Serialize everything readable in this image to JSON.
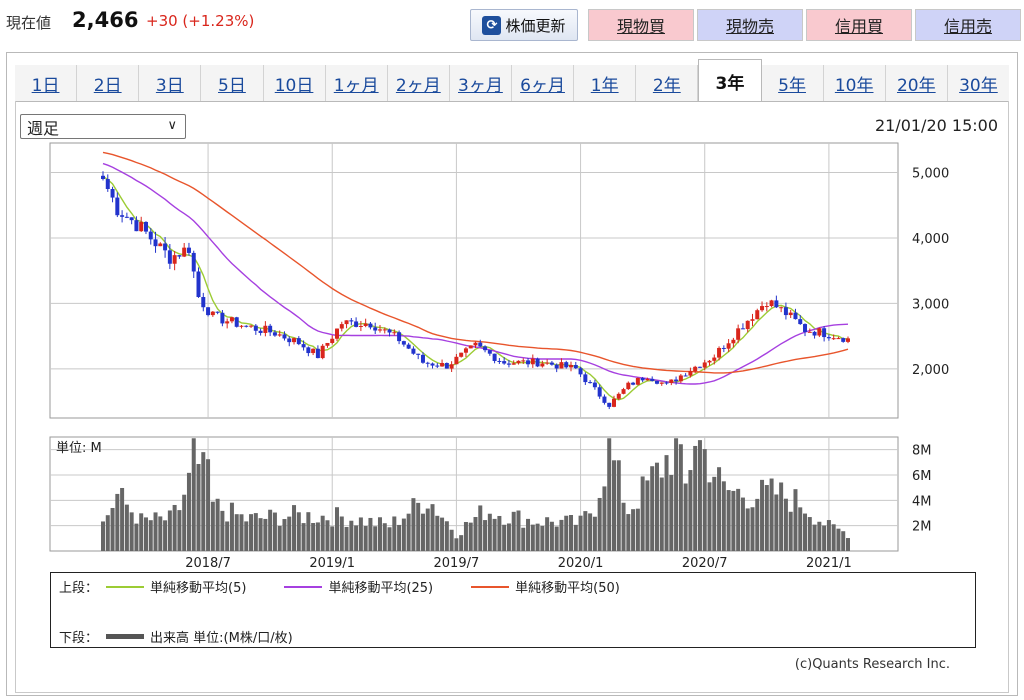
{
  "header": {
    "price_label": "現在値",
    "price_value": "2,466",
    "price_change": "+30 (+1.23%)",
    "refresh_label": "株価更新",
    "buttons": [
      "現物買",
      "現物売",
      "信用買",
      "信用売"
    ],
    "colors": {
      "up": "#d9261c",
      "down": "#2233cc"
    }
  },
  "tabs": [
    "1日",
    "2日",
    "3日",
    "5日",
    "10日",
    "1ヶ月",
    "2ヶ月",
    "3ヶ月",
    "6ヶ月",
    "1年",
    "2年",
    "3年",
    "5年",
    "10年",
    "20年",
    "30年"
  ],
  "active_tab": 11,
  "period_select": "週足",
  "timestamp": "21/01/20 15:00",
  "chart_data": [
    {
      "type": "candlestick",
      "y_ticks": [
        "5,000",
        "4,000",
        "3,000",
        "2,000"
      ],
      "y_tick_values": [
        5000,
        4000,
        3000,
        2000
      ],
      "ylim": [
        1250,
        5450
      ],
      "x_labels": [
        "2018/7",
        "2019/1",
        "2019/7",
        "2020/1",
        "2020/7",
        "2021/1"
      ],
      "x_label_week_index": [
        22,
        48,
        74,
        100,
        126,
        152
      ],
      "week_count": 157,
      "close_anchors": [
        [
          0,
          4900
        ],
        [
          3,
          4450
        ],
        [
          8,
          4150
        ],
        [
          14,
          3700
        ],
        [
          18,
          3850
        ],
        [
          20,
          3100
        ],
        [
          23,
          2800
        ],
        [
          30,
          2650
        ],
        [
          36,
          2550
        ],
        [
          41,
          2400
        ],
        [
          45,
          2200
        ],
        [
          50,
          2700
        ],
        [
          56,
          2700
        ],
        [
          62,
          2450
        ],
        [
          67,
          2100
        ],
        [
          72,
          2050
        ],
        [
          78,
          2350
        ],
        [
          84,
          2100
        ],
        [
          92,
          2100
        ],
        [
          99,
          2000
        ],
        [
          104,
          1600
        ],
        [
          106,
          1450
        ],
        [
          110,
          1750
        ],
        [
          114,
          1900
        ],
        [
          118,
          1750
        ],
        [
          122,
          1950
        ],
        [
          128,
          2200
        ],
        [
          133,
          2600
        ],
        [
          139,
          3050
        ],
        [
          143,
          2850
        ],
        [
          147,
          2600
        ],
        [
          151,
          2550
        ],
        [
          156,
          2466
        ]
      ],
      "ma_series": [
        {
          "name": "単純移動平均(5)",
          "color": "#9ccc34",
          "window": 5
        },
        {
          "name": "単純移動平均(25)",
          "color": "#a640e0",
          "window": 25
        },
        {
          "name": "単純移動平均(50)",
          "color": "#e8552c",
          "window": 50
        }
      ]
    },
    {
      "type": "bar",
      "unit_label": "単位: M",
      "y_ticks": [
        "8M",
        "6M",
        "4M",
        "2M"
      ],
      "y_tick_values": [
        8,
        6,
        4,
        2
      ],
      "ylim": [
        0,
        9
      ],
      "bar_color": "#666666",
      "volume_anchors": [
        [
          0,
          2.2
        ],
        [
          3,
          4.4
        ],
        [
          8,
          2.4
        ],
        [
          14,
          2.5
        ],
        [
          16,
          3.4
        ],
        [
          18,
          5.5
        ],
        [
          19,
          8.3
        ],
        [
          20,
          5.5
        ],
        [
          21,
          7.6
        ],
        [
          23,
          3.6
        ],
        [
          30,
          2.5
        ],
        [
          40,
          2.8
        ],
        [
          50,
          2.7
        ],
        [
          60,
          2.0
        ],
        [
          68,
          4.2
        ],
        [
          74,
          1.4
        ],
        [
          80,
          3.2
        ],
        [
          90,
          2.4
        ],
        [
          100,
          2.2
        ],
        [
          103,
          3.6
        ],
        [
          106,
          8.0
        ],
        [
          110,
          3.2
        ],
        [
          116,
          6.2
        ],
        [
          120,
          8.2
        ],
        [
          122,
          5.0
        ],
        [
          124,
          9.2
        ],
        [
          130,
          4.8
        ],
        [
          136,
          4.4
        ],
        [
          141,
          4.6
        ],
        [
          146,
          3.8
        ],
        [
          152,
          1.9
        ],
        [
          156,
          1.4
        ]
      ]
    }
  ],
  "legend": {
    "upper_label": "上段：",
    "lower_label": "下段：",
    "volume_item": "出来高 単位:(M株/口/枚)"
  },
  "copyright": "(c)Quants Research Inc."
}
